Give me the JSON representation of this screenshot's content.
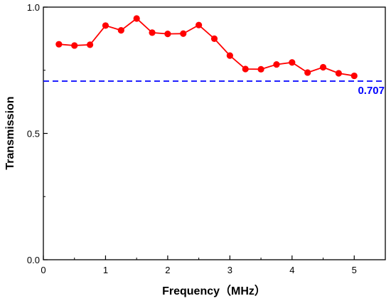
{
  "chart_data": {
    "type": "line",
    "xlabel": "Frequency（MHz）",
    "ylabel": "Transmission",
    "xlim": [
      0,
      5.5
    ],
    "ylim": [
      0,
      1.0
    ],
    "x_ticks": [
      0,
      1,
      2,
      3,
      4,
      5
    ],
    "x_tick_labels": [
      "0",
      "1",
      "2",
      "3",
      "4",
      "5"
    ],
    "y_ticks": [
      0.0,
      0.5,
      1.0
    ],
    "y_tick_labels": [
      "0.0",
      "0.5",
      "1.0"
    ],
    "grid": false,
    "series": [
      {
        "color": "#ff0000",
        "marker": "circle",
        "x": [
          0.25,
          0.5,
          0.75,
          1.0,
          1.25,
          1.5,
          1.75,
          2.0,
          2.25,
          2.5,
          2.75,
          3.0,
          3.25,
          3.5,
          3.75,
          4.0,
          4.25,
          4.5,
          4.75,
          5.0
        ],
        "y": [
          0.853,
          0.848,
          0.851,
          0.927,
          0.908,
          0.955,
          0.899,
          0.894,
          0.895,
          0.929,
          0.875,
          0.808,
          0.755,
          0.754,
          0.773,
          0.781,
          0.741,
          0.762,
          0.738,
          0.728
        ]
      }
    ],
    "reference_line": {
      "y": 0.707,
      "label": "0.707",
      "color": "#0000ff",
      "style": "dashed"
    }
  }
}
